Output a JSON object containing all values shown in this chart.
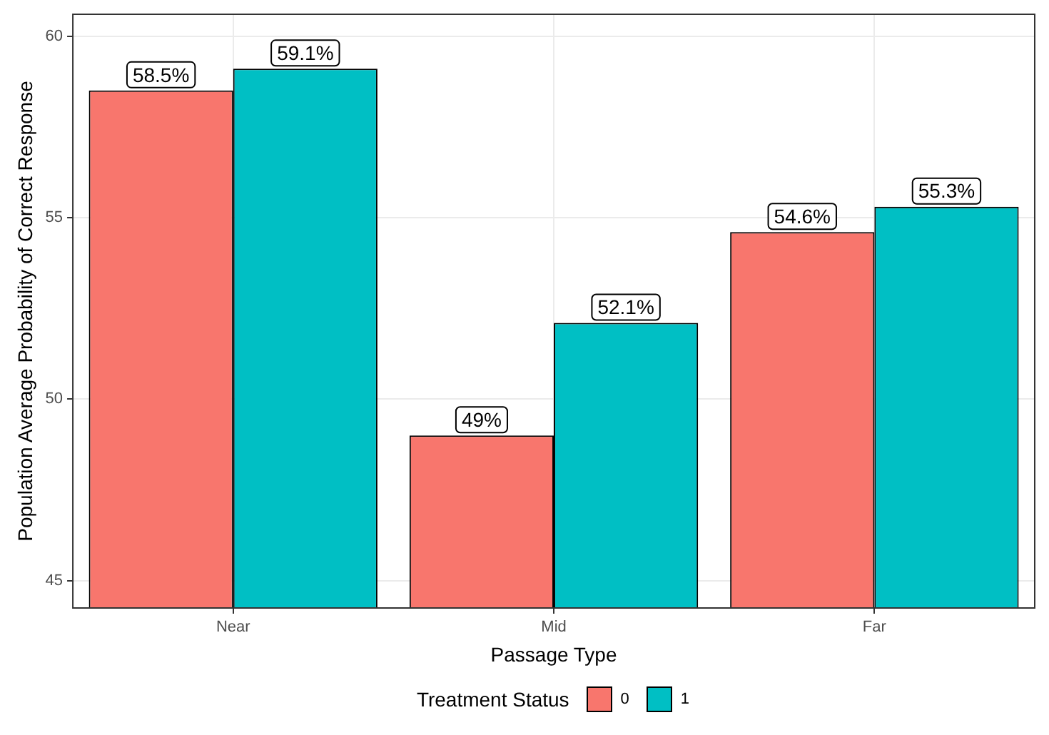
{
  "chart_data": {
    "type": "bar",
    "xlabel": "Passage Type",
    "ylabel": "Population Average Probability of Correct Response",
    "legend_title": "Treatment Status",
    "categories": [
      "Near",
      "Mid",
      "Far"
    ],
    "series": [
      {
        "name": "0",
        "color": "#f8766d",
        "values": [
          58.5,
          49,
          54.6
        ],
        "value_labels": [
          "58.5%",
          "49%",
          "54.6%"
        ]
      },
      {
        "name": "1",
        "color": "#00bfc4",
        "values": [
          59.1,
          52.1,
          55.3
        ],
        "value_labels": [
          "59.1%",
          "52.1%",
          "55.3%"
        ]
      }
    ],
    "ylim": [
      44.25,
      60.6
    ],
    "yticks": [
      45,
      50,
      55,
      60
    ],
    "grid": true,
    "legend": "bottom"
  }
}
